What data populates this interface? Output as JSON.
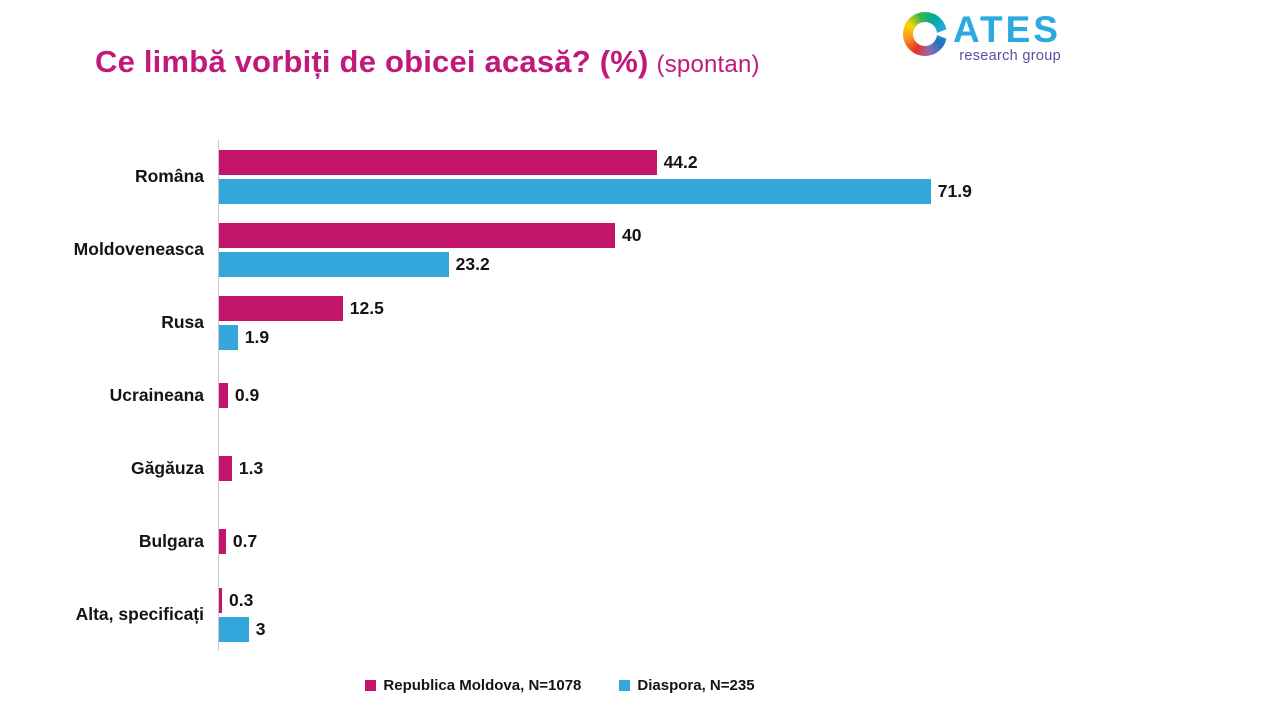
{
  "title": {
    "main": "Ce limbă vorbiți de obicei acasă? (%)",
    "suffix": "(spontan)"
  },
  "logo": {
    "name": "ATES",
    "subtitle": "research group"
  },
  "chart_data": {
    "type": "bar",
    "orientation": "horizontal",
    "title": "Ce limbă vorbiți de obicei acasă? (%) (spontan)",
    "categories": [
      "Româna",
      "Moldoveneasca",
      "Rusa",
      "Ucraineana",
      "Găgăuza",
      "Bulgara",
      "Alta, specificați"
    ],
    "series": [
      {
        "name": "Republica Moldova, N=1078",
        "color": "#c4156c",
        "values": [
          44.2,
          40,
          12.5,
          0.9,
          1.3,
          0.7,
          0.3
        ]
      },
      {
        "name": "Diaspora, N=235",
        "color": "#33a7db",
        "values": [
          71.9,
          23.2,
          1.9,
          null,
          null,
          null,
          3
        ]
      }
    ],
    "xlim": [
      0,
      100
    ],
    "value_labels": true,
    "grid": false,
    "legend_position": "bottom"
  }
}
